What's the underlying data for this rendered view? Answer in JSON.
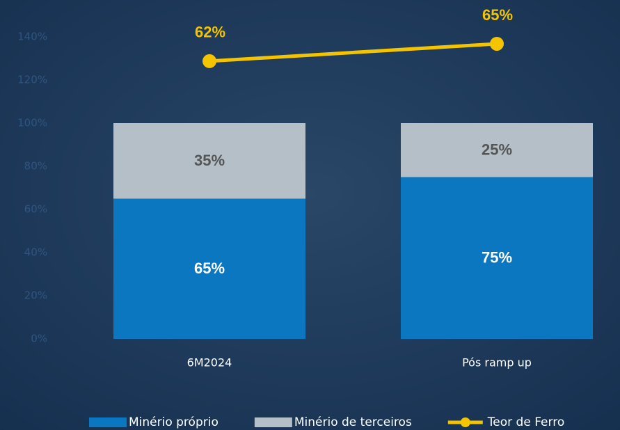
{
  "chart_data": {
    "type": "bar",
    "stacked": true,
    "categories": [
      "6M2024",
      "Pós ramp up"
    ],
    "series": [
      {
        "name": "Minério próprio",
        "color": "#0a77c0",
        "values": [
          65,
          75
        ],
        "value_labels": [
          "65%",
          "75%"
        ],
        "label_color": "#ffffff"
      },
      {
        "name": "Minério de terceiros",
        "color": "#b4bfc7",
        "values": [
          35,
          25
        ],
        "value_labels": [
          "35%",
          "25%"
        ],
        "label_color": "#555555"
      },
      {
        "name": "Teor de Ferro",
        "type": "line",
        "axis": "y2",
        "color": "#f5c400",
        "values": [
          62,
          65
        ],
        "value_labels": [
          "62%",
          "65%"
        ],
        "label_color": "#f5c400"
      }
    ],
    "ylim": [
      0,
      140
    ],
    "yticks": [
      {
        "value": 0,
        "label": "0%"
      },
      {
        "value": 20,
        "label": "20%"
      },
      {
        "value": 40,
        "label": "40%"
      },
      {
        "value": 60,
        "label": "60%"
      },
      {
        "value": 80,
        "label": "80%"
      },
      {
        "value": 100,
        "label": "100%"
      },
      {
        "value": 120,
        "label": "120%"
      },
      {
        "value": 140,
        "label": "140%"
      }
    ],
    "y2lim": [
      14,
      66.2
    ],
    "grid": false
  }
}
